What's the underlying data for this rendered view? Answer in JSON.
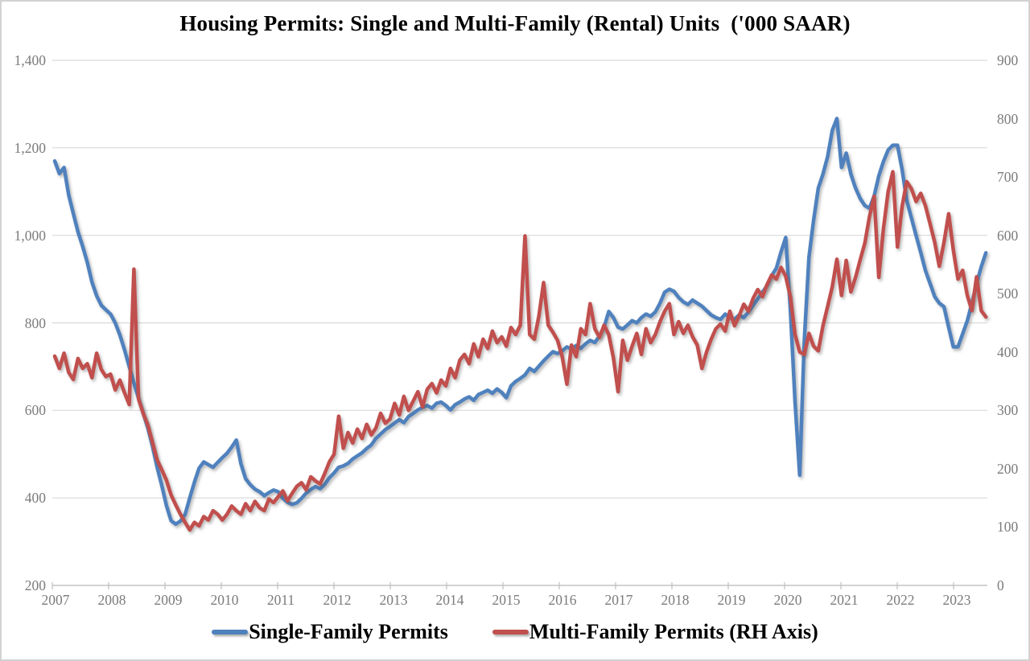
{
  "title": "Housing Permits: Single and Multi-Family (Rental) Units  ('000 SAAR)",
  "axes": {
    "left": {
      "labels": [
        "1,400",
        "1,200",
        "1,000",
        "800",
        "600",
        "400",
        "200"
      ],
      "values": [
        1400,
        1200,
        1000,
        800,
        600,
        400,
        200
      ]
    },
    "right": {
      "labels": [
        "900",
        "800",
        "700",
        "600",
        "500",
        "400",
        "300",
        "200",
        "100",
        "0"
      ],
      "values": [
        900,
        800,
        700,
        600,
        500,
        400,
        300,
        200,
        100,
        0
      ]
    },
    "x": {
      "labels": [
        "2007",
        "2008",
        "2009",
        "2010",
        "2011",
        "2012",
        "2013",
        "2014",
        "2015",
        "2016",
        "2017",
        "2018",
        "2019",
        "2020",
        "2021",
        "2022",
        "2023"
      ]
    }
  },
  "legend": [
    {
      "label": "Single-Family Permits",
      "color": "#4f81bd"
    },
    {
      "label": "Multi-Family Permits (RH Axis)",
      "color": "#c0504d"
    }
  ],
  "chart_data": {
    "type": "line",
    "title": "Housing Permits: Single and Multi-Family (Rental) Units ('000 SAAR)",
    "frequency": "monthly",
    "x_start": "2007-01",
    "x_end": "2023-09",
    "x_tick_labels": [
      "2007",
      "2008",
      "2009",
      "2010",
      "2011",
      "2012",
      "2013",
      "2014",
      "2015",
      "2016",
      "2017",
      "2018",
      "2019",
      "2020",
      "2021",
      "2022",
      "2023"
    ],
    "left_ylim": [
      200,
      1400
    ],
    "right_ylim": [
      0,
      900
    ],
    "grid": "horizontal",
    "legend_position": "bottom",
    "series": [
      {
        "name": "Single-Family Permits",
        "axis": "left",
        "color": "#4f81bd",
        "values": [
          1170,
          1141,
          1155,
          1092,
          1050,
          1008,
          975,
          938,
          893,
          862,
          840,
          830,
          820,
          800,
          772,
          738,
          700,
          663,
          628,
          594,
          560,
          518,
          470,
          428,
          382,
          348,
          340,
          347,
          362,
          400,
          436,
          468,
          482,
          476,
          470,
          481,
          492,
          502,
          516,
          532,
          478,
          444,
          430,
          420,
          414,
          405,
          412,
          418,
          414,
          399,
          390,
          385,
          389,
          399,
          411,
          419,
          426,
          421,
          431,
          446,
          457,
          470,
          473,
          479,
          489,
          496,
          503,
          513,
          521,
          536,
          546,
          556,
          563,
          571,
          579,
          572,
          586,
          593,
          601,
          607,
          611,
          605,
          616,
          619,
          611,
          601,
          613,
          619,
          626,
          631,
          623,
          636,
          641,
          646,
          639,
          649,
          641,
          629,
          656,
          666,
          673,
          681,
          696,
          689,
          701,
          713,
          724,
          734,
          730,
          736,
          745,
          740,
          748,
          742,
          752,
          760,
          755,
          770,
          790,
          826,
          812,
          790,
          786,
          795,
          805,
          800,
          812,
          820,
          815,
          825,
          845,
          870,
          877,
          872,
          858,
          848,
          842,
          852,
          845,
          838,
          828,
          818,
          812,
          808,
          820,
          812,
          808,
          818,
          812,
          825,
          840,
          855,
          870,
          885,
          908,
          925,
          962,
          995,
          830,
          620,
          452,
          760,
          950,
          1035,
          1108,
          1140,
          1180,
          1240,
          1267,
          1155,
          1188,
          1140,
          1108,
          1084,
          1068,
          1062,
          1090,
          1136,
          1169,
          1195,
          1206,
          1206,
          1150,
          1080,
          1040,
          1000,
          961,
          920,
          890,
          860,
          845,
          837,
          790,
          745,
          745,
          775,
          805,
          845,
          890,
          928,
          960
        ]
      },
      {
        "name": "Multi-Family Permits (RH Axis)",
        "axis": "right",
        "color": "#c0504d",
        "values": [
          393,
          372,
          398,
          365,
          353,
          389,
          372,
          380,
          356,
          398,
          370,
          358,
          362,
          335,
          352,
          330,
          310,
          542,
          320,
          295,
          275,
          245,
          215,
          198,
          180,
          155,
          138,
          122,
          108,
          95,
          108,
          102,
          118,
          112,
          128,
          122,
          112,
          122,
          136,
          128,
          122,
          140,
          128,
          144,
          133,
          128,
          148,
          142,
          152,
          162,
          145,
          158,
          170,
          176,
          164,
          186,
          179,
          174,
          192,
          212,
          225,
          290,
          235,
          262,
          244,
          268,
          252,
          276,
          258,
          270,
          295,
          278,
          285,
          312,
          292,
          324,
          300,
          316,
          332,
          306,
          336,
          346,
          330,
          352,
          342,
          372,
          356,
          386,
          396,
          380,
          414,
          392,
          422,
          406,
          436,
          416,
          426,
          410,
          442,
          430,
          446,
          599,
          430,
          422,
          462,
          519,
          446,
          434,
          420,
          392,
          345,
          412,
          392,
          440,
          430,
          483,
          440,
          425,
          446,
          430,
          390,
          332,
          420,
          386,
          410,
          432,
          396,
          440,
          416,
          430,
          452,
          470,
          483,
          430,
          452,
          432,
          446,
          426,
          412,
          372,
          400,
          422,
          440,
          448,
          436,
          470,
          445,
          462,
          482,
          470,
          492,
          507,
          495,
          516,
          532,
          525,
          545,
          530,
          495,
          430,
          400,
          396,
          432,
          410,
          402,
          445,
          478,
          512,
          559,
          497,
          557,
          503,
          528,
          558,
          587,
          632,
          667,
          528,
          612,
          675,
          709,
          580,
          650,
          692,
          680,
          658,
          672,
          651,
          620,
          588,
          547,
          588,
          637,
          575,
          525,
          540,
          497,
          471,
          529,
          471,
          460
        ]
      }
    ]
  }
}
